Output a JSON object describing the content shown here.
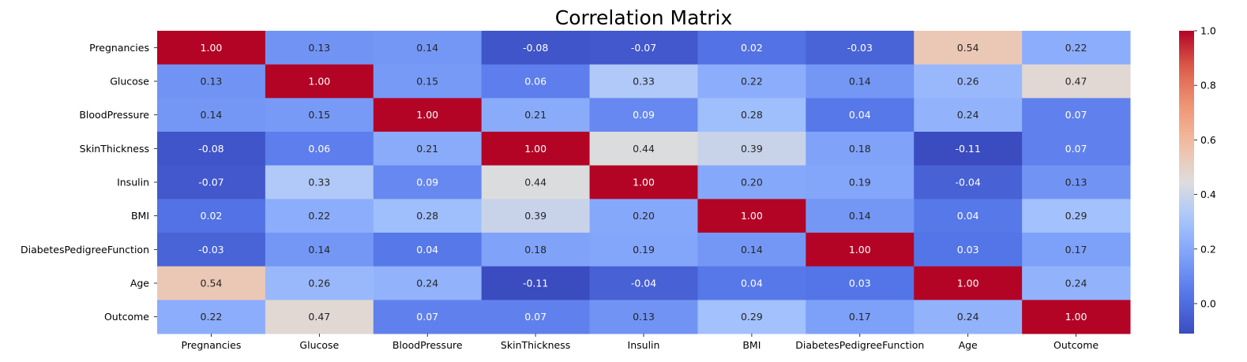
{
  "chart_data": {
    "type": "heatmap",
    "title": "Correlation Matrix",
    "x_labels": [
      "Pregnancies",
      "Glucose",
      "BloodPressure",
      "SkinThickness",
      "Insulin",
      "BMI",
      "DiabetesPedigreeFunction",
      "Age",
      "Outcome"
    ],
    "y_labels": [
      "Pregnancies",
      "Glucose",
      "BloodPressure",
      "SkinThickness",
      "Insulin",
      "BMI",
      "DiabetesPedigreeFunction",
      "Age",
      "Outcome"
    ],
    "values": [
      [
        1.0,
        0.13,
        0.14,
        -0.08,
        -0.07,
        0.02,
        -0.03,
        0.54,
        0.22
      ],
      [
        0.13,
        1.0,
        0.15,
        0.06,
        0.33,
        0.22,
        0.14,
        0.26,
        0.47
      ],
      [
        0.14,
        0.15,
        1.0,
        0.21,
        0.09,
        0.28,
        0.04,
        0.24,
        0.07
      ],
      [
        -0.08,
        0.06,
        0.21,
        1.0,
        0.44,
        0.39,
        0.18,
        -0.11,
        0.07
      ],
      [
        -0.07,
        0.33,
        0.09,
        0.44,
        1.0,
        0.2,
        0.19,
        -0.04,
        0.13
      ],
      [
        0.02,
        0.22,
        0.28,
        0.39,
        0.2,
        1.0,
        0.14,
        0.04,
        0.29
      ],
      [
        -0.03,
        0.14,
        0.04,
        0.18,
        0.19,
        0.14,
        1.0,
        0.03,
        0.17
      ],
      [
        0.54,
        0.26,
        0.24,
        -0.11,
        -0.04,
        0.04,
        0.03,
        1.0,
        0.24
      ],
      [
        0.22,
        0.47,
        0.07,
        0.07,
        0.13,
        0.29,
        0.17,
        0.24,
        1.0
      ]
    ],
    "value_format": "0.00",
    "colormap": "coolwarm",
    "vmin": -0.11,
    "vmax": 1.0,
    "colorbar": {
      "placement": "right",
      "ticks": [
        0.0,
        0.2,
        0.4,
        0.6,
        0.8,
        1.0
      ],
      "tick_labels": [
        "0.0",
        "0.2",
        "0.4",
        "0.6",
        "0.8",
        "1.0"
      ]
    }
  }
}
